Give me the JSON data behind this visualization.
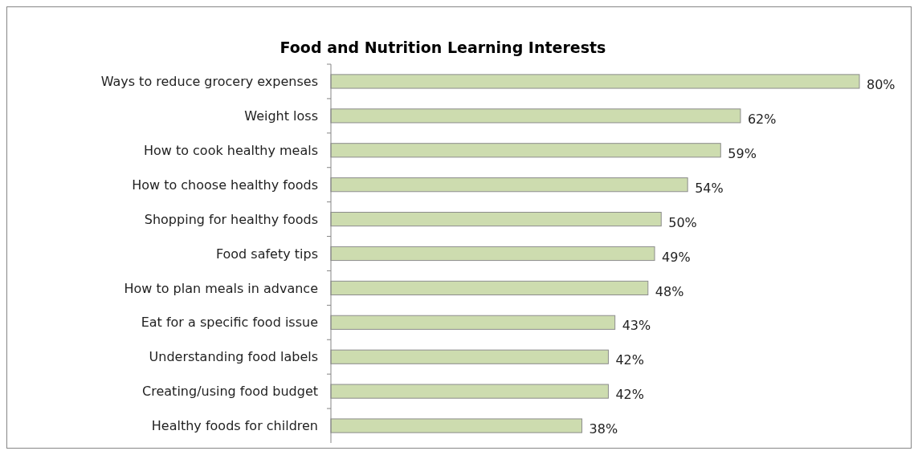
{
  "chart_data": {
    "type": "bar",
    "orientation": "horizontal",
    "title": "Food and Nutrition Learning Interests",
    "categories": [
      "Ways to reduce grocery expenses",
      "Weight loss",
      "How to cook healthy meals",
      "How to choose healthy foods",
      "Shopping for healthy foods",
      "Food safety tips",
      "How to plan meals in advance",
      "Eat for a specific food issue",
      "Understanding food labels",
      "Creating/using food budget",
      "Healthy foods for children"
    ],
    "values": [
      80,
      62,
      59,
      54,
      50,
      49,
      48,
      43,
      42,
      42,
      38
    ],
    "value_labels": [
      "80%",
      "62%",
      "59%",
      "54%",
      "50%",
      "49%",
      "48%",
      "43%",
      "42%",
      "42%",
      "38%"
    ],
    "color": "#cddcaf"
  }
}
